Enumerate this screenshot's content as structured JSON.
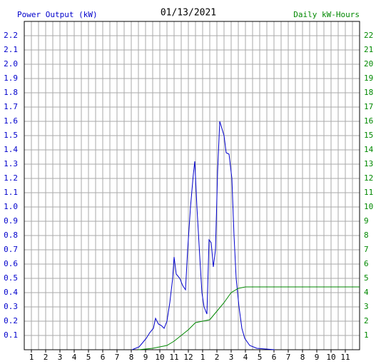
{
  "chart_data": {
    "type": "line",
    "title": "01/13/2021",
    "y_label": "Power Output (kW)",
    "y2_label": "Daily kW-Hours",
    "xlim": [
      0.5,
      24
    ],
    "xticks": [
      1,
      2,
      3,
      4,
      5,
      6,
      7,
      8,
      9,
      10,
      11,
      12,
      {
        "value": 13,
        "label": "1"
      },
      {
        "value": 14,
        "label": "2"
      },
      {
        "value": 15,
        "label": "3"
      },
      {
        "value": 16,
        "label": "4"
      },
      {
        "value": 17,
        "label": "5"
      },
      {
        "value": 18,
        "label": "6"
      },
      {
        "value": 19,
        "label": "7"
      },
      {
        "value": 20,
        "label": "8"
      },
      {
        "value": 21,
        "label": "9"
      },
      {
        "value": 22,
        "label": "10"
      },
      {
        "value": 23,
        "label": "11"
      }
    ],
    "ylim": [
      0,
      2.3
    ],
    "yticks": [
      0.1,
      0.2,
      0.3,
      0.4,
      0.5,
      0.6,
      0.7,
      0.8,
      0.9,
      {
        "value": 1,
        "label": "1.0"
      },
      1.1,
      1.2,
      1.3,
      1.4,
      1.5,
      1.6,
      1.7,
      1.8,
      1.9,
      {
        "value": 2,
        "label": "2.0"
      },
      2.1,
      2.2
    ],
    "y2lim": [
      0,
      23
    ],
    "y2ticks": [
      1,
      2,
      3,
      4,
      5,
      6,
      7,
      8,
      9,
      10,
      11,
      12,
      13,
      14,
      15,
      16,
      17,
      18,
      19,
      20,
      21,
      22
    ],
    "grid": true,
    "series": [
      {
        "name": "Power Output (kW)",
        "color": "#0000cc",
        "x": [
          8.05,
          8.55,
          8.8,
          9.05,
          9.3,
          9.55,
          9.7,
          9.9,
          10.1,
          10.3,
          10.5,
          10.7,
          10.9,
          11.0,
          11.15,
          11.4,
          11.6,
          11.8,
          11.95,
          12.15,
          12.35,
          12.45,
          12.6,
          12.8,
          12.95,
          13.1,
          13.3,
          13.45,
          13.6,
          13.75,
          13.9,
          14.05,
          14.2,
          14.35,
          14.5,
          14.65,
          14.85,
          15.05,
          15.2,
          15.35,
          15.55,
          15.75,
          15.95,
          16.3,
          16.8,
          18.05
        ],
        "values": [
          0,
          0.02,
          0.05,
          0.08,
          0.12,
          0.15,
          0.22,
          0.18,
          0.17,
          0.15,
          0.2,
          0.33,
          0.5,
          0.65,
          0.53,
          0.5,
          0.45,
          0.42,
          0.7,
          1.0,
          1.23,
          1.32,
          1.0,
          0.65,
          0.4,
          0.3,
          0.25,
          0.77,
          0.75,
          0.58,
          0.7,
          1.25,
          1.6,
          1.55,
          1.5,
          1.38,
          1.37,
          1.2,
          0.8,
          0.5,
          0.3,
          0.15,
          0.08,
          0.03,
          0.01,
          0
        ]
      },
      {
        "name": "Daily kW-Hours",
        "color": "#008800",
        "axis": "y2",
        "x": [
          8.5,
          9.5,
          10,
          10.5,
          11,
          11.5,
          12,
          12.5,
          13,
          13.5,
          14,
          14.5,
          15,
          15.5,
          16,
          17,
          24
        ],
        "values": [
          0,
          0.1,
          0.2,
          0.3,
          0.6,
          1.0,
          1.4,
          1.9,
          2.0,
          2.1,
          2.7,
          3.3,
          4.0,
          4.3,
          4.4,
          4.4,
          4.4
        ]
      }
    ]
  }
}
